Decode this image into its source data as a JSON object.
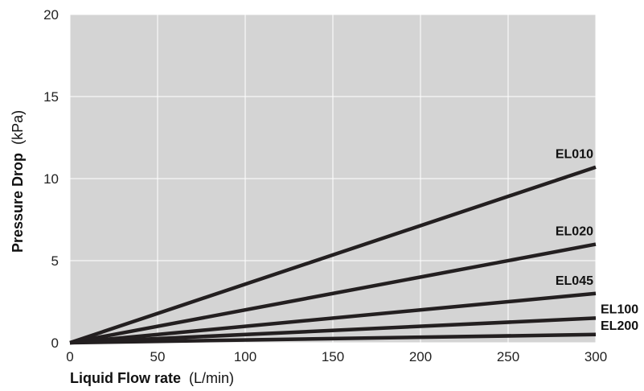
{
  "chart_data": {
    "type": "line",
    "xlabel_bold": "Liquid Flow rate",
    "xlabel_unit": "(L/min)",
    "ylabel_bold": "Pressure Drop",
    "ylabel_unit": "(kPa)",
    "xlim": [
      0,
      300
    ],
    "ylim": [
      0,
      20
    ],
    "xticks": [
      "0",
      "50",
      "100",
      "150",
      "200",
      "250",
      "300"
    ],
    "yticks": [
      "0",
      "5",
      "10",
      "15",
      "20"
    ],
    "grid": true,
    "colors": {
      "background": "#d4d4d4",
      "grid": "#ffffff",
      "line": "#231f20"
    },
    "series": [
      {
        "name": "EL010",
        "x": [
          0,
          300
        ],
        "y": [
          0,
          10.7
        ]
      },
      {
        "name": "EL020",
        "x": [
          0,
          300
        ],
        "y": [
          0,
          6.0
        ]
      },
      {
        "name": "EL045",
        "x": [
          0,
          300
        ],
        "y": [
          0,
          3.0
        ]
      },
      {
        "name": "EL100",
        "x": [
          0,
          300
        ],
        "y": [
          0,
          1.5
        ]
      },
      {
        "name": "EL200",
        "x": [
          0,
          300
        ],
        "y": [
          0,
          0.5
        ]
      }
    ]
  }
}
